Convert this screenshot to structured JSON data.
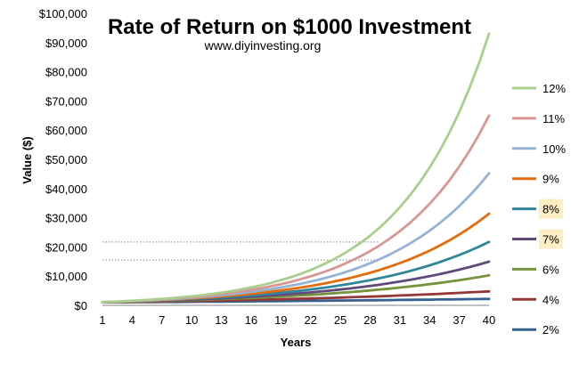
{
  "chart_data": {
    "type": "line",
    "title": "Rate of Return on $1000 Investment",
    "subtitle": "www.diyinvesting.org",
    "xlabel": "Years",
    "ylabel": "Value ($)",
    "x": [
      1,
      2,
      3,
      4,
      5,
      6,
      7,
      8,
      9,
      10,
      11,
      12,
      13,
      14,
      15,
      16,
      17,
      18,
      19,
      20,
      21,
      22,
      23,
      24,
      25,
      26,
      27,
      28,
      29,
      30,
      31,
      32,
      33,
      34,
      35,
      36,
      37,
      38,
      39,
      40
    ],
    "x_tick_labels": [
      "1",
      "4",
      "7",
      "10",
      "13",
      "16",
      "19",
      "22",
      "25",
      "28",
      "31",
      "34",
      "37",
      "40"
    ],
    "y_tick_labels": [
      "$0",
      "$10,000",
      "$20,000",
      "$30,000",
      "$40,000",
      "$50,000",
      "$60,000",
      "$70,000",
      "$80,000",
      "$90,000",
      "$100,000"
    ],
    "xlim": [
      1,
      40
    ],
    "ylim": [
      0,
      100000
    ],
    "grid": false,
    "legend_position": "right",
    "reference_lines": [
      {
        "axis": "y",
        "value": 21700,
        "style": "dotted",
        "color": "#888888"
      },
      {
        "axis": "y",
        "value": 15500,
        "style": "dotted",
        "color": "#888888"
      }
    ],
    "series": [
      {
        "name": "12%",
        "color": "#a9cf8e",
        "values": [
          1120,
          1254,
          1405,
          1574,
          1762,
          1974,
          2211,
          2476,
          2773,
          3106,
          3479,
          3896,
          4363,
          4887,
          5474,
          6130,
          6866,
          7690,
          8613,
          9646,
          10804,
          12100,
          13552,
          15179,
          17000,
          19040,
          21325,
          23884,
          26750,
          29960,
          33555,
          37582,
          42092,
          47143,
          52800,
          59136,
          66232,
          74180,
          83081,
          93051
        ]
      },
      {
        "name": "11%",
        "color": "#d99695",
        "values": [
          1110,
          1232,
          1368,
          1518,
          1685,
          1870,
          2076,
          2305,
          2558,
          2839,
          3152,
          3498,
          3883,
          4310,
          4785,
          5311,
          5895,
          6544,
          7263,
          8062,
          8949,
          9934,
          11026,
          12239,
          13585,
          15080,
          16739,
          18580,
          20624,
          22892,
          25410,
          28206,
          31308,
          34752,
          38575,
          42818,
          47528,
          52756,
          58559,
          65001
        ]
      },
      {
        "name": "10%",
        "color": "#95b3d7",
        "values": [
          1100,
          1210,
          1331,
          1464,
          1611,
          1772,
          1949,
          2144,
          2358,
          2594,
          2853,
          3138,
          3452,
          3797,
          4177,
          4595,
          5054,
          5560,
          6116,
          6727,
          7400,
          8140,
          8954,
          9850,
          10835,
          11918,
          13110,
          14421,
          15863,
          17449,
          19194,
          21114,
          23225,
          25548,
          28102,
          30913,
          34004,
          37404,
          41145,
          45259
        ]
      },
      {
        "name": "9%",
        "color": "#e46c0a",
        "values": [
          1090,
          1188,
          1295,
          1412,
          1539,
          1677,
          1828,
          1993,
          2172,
          2367,
          2580,
          2813,
          3066,
          3342,
          3642,
          3970,
          4328,
          4717,
          5142,
          5604,
          6109,
          6659,
          7258,
          7911,
          8623,
          9399,
          10245,
          11167,
          12172,
          13268,
          14462,
          15763,
          17182,
          18728,
          20414,
          22251,
          24254,
          26437,
          28816,
          31409
        ]
      },
      {
        "name": "8%",
        "color": "#31859c",
        "values": [
          1080,
          1166,
          1260,
          1360,
          1469,
          1587,
          1714,
          1851,
          1999,
          2159,
          2332,
          2518,
          2720,
          2937,
          3172,
          3426,
          3700,
          3996,
          4316,
          4661,
          5034,
          5437,
          5871,
          6341,
          6848,
          7396,
          7988,
          8627,
          9317,
          10063,
          10868,
          11737,
          12676,
          13690,
          14785,
          15968,
          17246,
          18625,
          20115,
          21725
        ]
      },
      {
        "name": "7%",
        "color": "#604a7b",
        "values": [
          1070,
          1145,
          1225,
          1311,
          1403,
          1501,
          1606,
          1718,
          1838,
          1967,
          2105,
          2252,
          2410,
          2579,
          2759,
          2952,
          3159,
          3380,
          3617,
          3870,
          4141,
          4430,
          4741,
          5072,
          5427,
          5807,
          6214,
          6649,
          7114,
          7612,
          8145,
          8715,
          9325,
          9978,
          10677,
          11424,
          12224,
          13079,
          13995,
          14974
        ]
      },
      {
        "name": "6%",
        "color": "#77933c",
        "values": [
          1060,
          1124,
          1191,
          1262,
          1338,
          1419,
          1504,
          1594,
          1689,
          1791,
          1898,
          2012,
          2133,
          2261,
          2397,
          2540,
          2693,
          2854,
          3026,
          3207,
          3400,
          3604,
          3820,
          4049,
          4292,
          4549,
          4822,
          5112,
          5418,
          5743,
          6088,
          6453,
          6841,
          7251,
          7686,
          8147,
          8636,
          9154,
          9704,
          10286
        ]
      },
      {
        "name": "4%",
        "color": "#953735",
        "values": [
          1040,
          1082,
          1125,
          1170,
          1217,
          1265,
          1316,
          1369,
          1423,
          1480,
          1539,
          1601,
          1665,
          1732,
          1801,
          1873,
          1948,
          2026,
          2107,
          2191,
          2279,
          2370,
          2465,
          2563,
          2666,
          2772,
          2883,
          2999,
          3119,
          3243,
          3373,
          3508,
          3648,
          3794,
          3946,
          4104,
          4268,
          4439,
          4616,
          4801
        ]
      },
      {
        "name": "2%",
        "color": "#376092",
        "values": [
          1020,
          1040,
          1061,
          1082,
          1104,
          1126,
          1149,
          1172,
          1195,
          1219,
          1243,
          1268,
          1294,
          1319,
          1346,
          1373,
          1400,
          1428,
          1457,
          1486,
          1516,
          1546,
          1577,
          1608,
          1641,
          1673,
          1707,
          1741,
          1776,
          1811,
          1848,
          1885,
          1922,
          1961,
          2000,
          2040,
          2081,
          2122,
          2165,
          2208
        ]
      }
    ],
    "highlighted_legend_entries": [
      "8%",
      "7%"
    ],
    "highlight_color": "#fdefc3"
  }
}
